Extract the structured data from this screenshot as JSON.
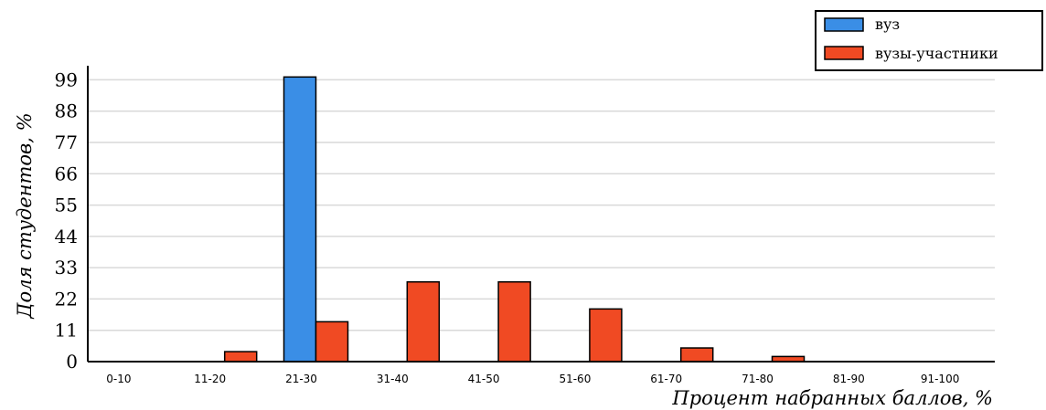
{
  "chart_data": {
    "type": "bar",
    "categories": [
      "0-10",
      "11-20",
      "21-30",
      "31-40",
      "41-50",
      "51-60",
      "61-70",
      "71-80",
      "81-90",
      "91-100"
    ],
    "series": [
      {
        "name": "вуз",
        "color": "#3a8ee6",
        "values": [
          0,
          0,
          100,
          0,
          0,
          0,
          0,
          0,
          0,
          0
        ]
      },
      {
        "name": "вузы-участники",
        "color": "#f04a23",
        "values": [
          0,
          3.5,
          14,
          28,
          28,
          18.5,
          4.8,
          1.8,
          0,
          0
        ]
      }
    ],
    "yticks": [
      0,
      11,
      22,
      33,
      44,
      55,
      66,
      77,
      88,
      99
    ],
    "ylim": [
      0,
      102
    ],
    "xlabel": "Процент набранных баллов, %",
    "ylabel": "Доля студентов, %",
    "grid": true,
    "legend_position": "top-right"
  }
}
